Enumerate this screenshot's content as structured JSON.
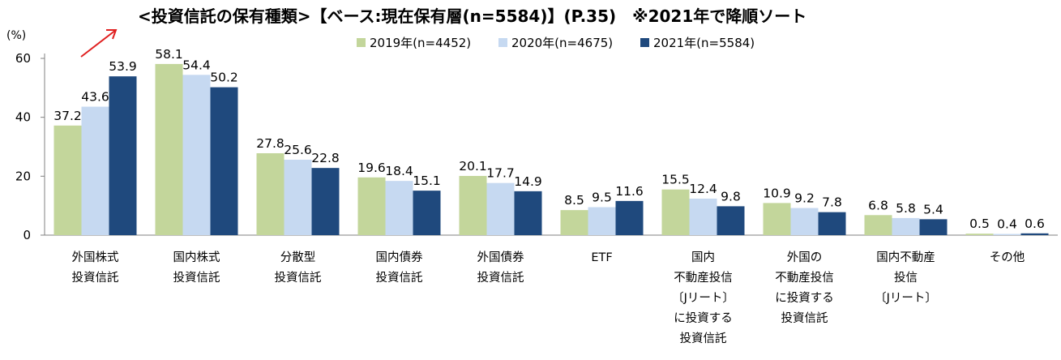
{
  "title": "<投資信託の保有種類>【ベース:現在保有層(n=5584)】(P.35)　※2021年で降順ソート",
  "chart_data": {
    "type": "bar",
    "y_unit": "(%)",
    "ylim": [
      0,
      60
    ],
    "yticks": [
      0,
      20,
      40,
      60
    ],
    "grid": false,
    "legend_position": "top-right",
    "categories": [
      [
        "外国株式",
        "投資信託"
      ],
      [
        "国内株式",
        "投資信託"
      ],
      [
        "分散型",
        "投資信託"
      ],
      [
        "国内債券",
        "投資信託"
      ],
      [
        "外国債券",
        "投資信託"
      ],
      [
        "ETF"
      ],
      [
        "国内",
        "不動産投信",
        "〔Jリート〕",
        "に投資する",
        "投資信託"
      ],
      [
        "外国の",
        "不動産投信",
        "に投資する",
        "投資信託"
      ],
      [
        "国内不動産",
        "投信",
        "〔Jリート〕"
      ],
      [
        "その他"
      ]
    ],
    "series": [
      {
        "name": "2019年(n=4452)",
        "color": "#c3d69b",
        "values": [
          37.2,
          58.1,
          27.8,
          19.6,
          20.1,
          8.5,
          15.5,
          10.9,
          6.8,
          0.5
        ]
      },
      {
        "name": "2020年(n=4675)",
        "color": "#c6d9f1",
        "values": [
          43.6,
          54.4,
          25.6,
          18.4,
          17.7,
          9.5,
          12.4,
          9.2,
          5.8,
          0.4
        ]
      },
      {
        "name": "2021年(n=5584)",
        "color": "#1f497d",
        "values": [
          53.9,
          50.2,
          22.8,
          15.1,
          14.9,
          11.6,
          9.8,
          7.8,
          5.4,
          0.6
        ]
      }
    ]
  }
}
